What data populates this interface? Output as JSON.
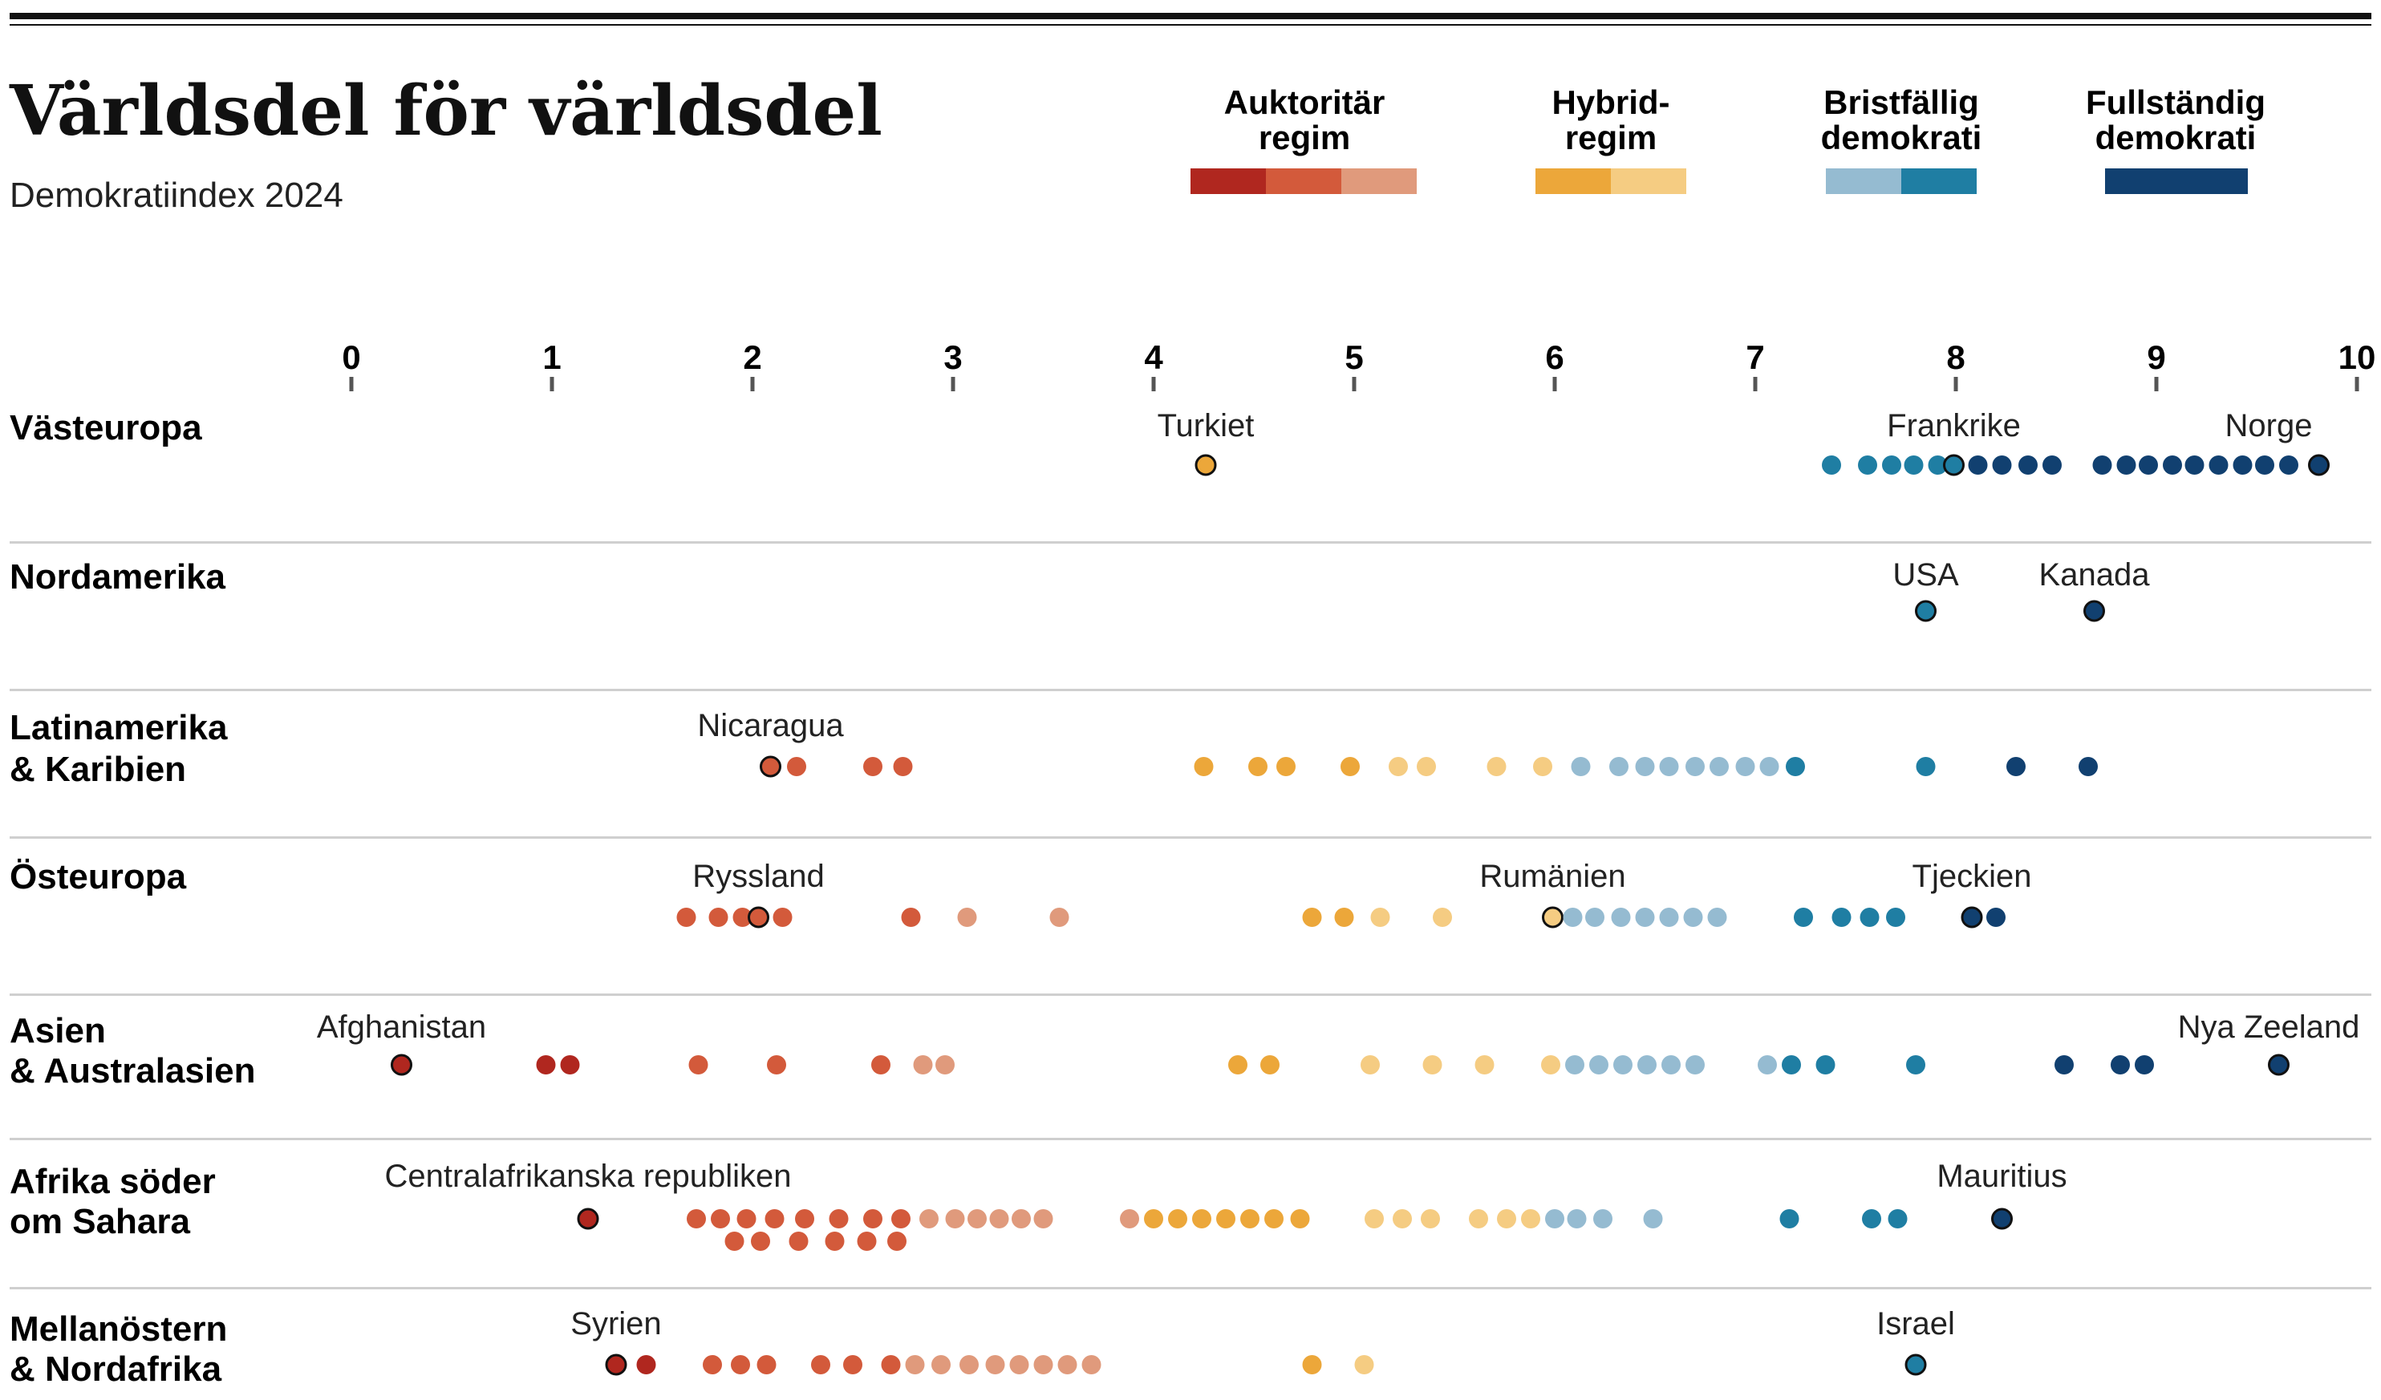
{
  "header": {
    "title": "Världsdel för världsdel",
    "subtitle": "Demokratiindex 2024"
  },
  "legend": [
    {
      "line1": "Auktoritär",
      "line2": "regim",
      "colors": [
        "#b0271f",
        "#d35a3b",
        "#e09a7c"
      ]
    },
    {
      "line1": "Hybrid-",
      "line2": "regim",
      "colors": [
        "#eca73a",
        "#f5cc82"
      ]
    },
    {
      "line1": "Bristfällig",
      "line2": "demokrati",
      "colors": [
        "#95bbd1",
        "#1f7ea3"
      ]
    },
    {
      "line1": "Fullständig",
      "line2": "demokrati",
      "colors": [
        "#114070"
      ]
    }
  ],
  "chart_data": {
    "type": "scatter",
    "xlim": [
      0,
      10
    ],
    "x_ticks": [
      "0",
      "1",
      "2",
      "3",
      "4",
      "5",
      "6",
      "7",
      "8",
      "9",
      "10"
    ],
    "categories": {
      "auth_dark": "#b0271f",
      "auth_mid": "#d35a3b",
      "auth_light": "#e09a7c",
      "hyb_dark": "#eca73a",
      "hyb_light": "#f5cc82",
      "flaw_light": "#95bbd1",
      "flaw_dark": "#1f7ea3",
      "full": "#114070"
    },
    "regions": [
      {
        "name_lines": [
          "Västeuropa"
        ],
        "labels": [
          {
            "text": "Turkiet",
            "value": 4.26
          },
          {
            "text": "Frankrike",
            "value": 7.99
          },
          {
            "text": "Norge",
            "value": 9.81
          }
        ],
        "values": [
          [
            4.26
          ],
          [
            7.38,
            7.56,
            7.68,
            7.79,
            7.91,
            7.99,
            8.11,
            8.23,
            8.36,
            8.48
          ],
          [
            8.73,
            8.85,
            8.96,
            9.08,
            9.19,
            9.31,
            9.43,
            9.54,
            9.66,
            9.81
          ]
        ]
      },
      {
        "name_lines": [
          "Nordamerika"
        ],
        "labels": [
          {
            "text": "USA",
            "value": 7.85
          },
          {
            "text": "Kanada",
            "value": 8.69
          }
        ],
        "values": [
          [],
          [
            7.85
          ],
          [
            8.69
          ]
        ]
      },
      {
        "name_lines": [
          "Latinamerika",
          "& Karibien"
        ],
        "labels": [
          {
            "text": "Nicaragua",
            "value": 2.09
          }
        ],
        "values": [
          [
            2.09,
            2.22,
            2.6,
            2.75
          ],
          [
            4.25,
            4.52,
            4.66,
            4.98,
            5.22,
            5.36,
            5.71,
            5.94
          ],
          [
            6.13,
            6.32,
            6.45,
            6.57,
            6.7,
            6.82,
            6.95,
            7.07,
            7.2,
            7.85,
            8.3,
            8.66
          ]
        ]
      },
      {
        "name_lines": [
          "Östeuropa"
        ],
        "labels": [
          {
            "text": "Ryssland",
            "value": 2.03
          },
          {
            "text": "Rumänien",
            "value": 5.99
          },
          {
            "text": "Tjeckien",
            "value": 8.08
          }
        ],
        "values": [
          [
            1.67,
            1.83,
            1.95,
            2.03,
            2.15,
            2.79,
            3.07,
            3.53
          ],
          [
            4.79,
            4.95,
            5.13,
            5.44,
            5.99
          ],
          [
            6.09,
            6.2,
            6.33,
            6.45,
            6.57,
            6.69,
            6.81,
            7.24,
            7.43,
            7.57,
            7.7,
            8.08,
            8.2
          ]
        ]
      },
      {
        "name_lines": [
          "Asien",
          "& Australasien"
        ],
        "labels": [
          {
            "text": "Afghanistan",
            "value": 0.25
          },
          {
            "text": "Nya Zeeland",
            "value": 9.61
          }
        ],
        "values": [
          [
            0.25,
            0.97,
            1.09,
            1.73,
            2.12,
            2.64,
            2.85,
            2.96
          ],
          [
            4.42,
            4.58,
            5.08,
            5.39,
            5.65
          ],
          [
            5.98,
            6.1,
            6.22,
            6.34,
            6.46,
            6.58,
            6.7,
            7.06,
            7.18,
            7.35,
            7.8,
            8.54,
            8.82,
            8.94,
            9.61
          ]
        ]
      },
      {
        "name_lines": [
          "Afrika söder",
          "om Sahara"
        ],
        "labels": [
          {
            "text": "Centralafrikanska republiken",
            "value": 1.18
          },
          {
            "text": "Mauritius",
            "value": 8.23
          }
        ],
        "values": [
          [
            1.18,
            1.72,
            1.84,
            1.97,
            2.11,
            2.26,
            2.43,
            2.6,
            2.74,
            2.88,
            3.01,
            3.12,
            3.23,
            3.34,
            3.45,
            1.91,
            2.04,
            2.23,
            2.41,
            2.57,
            2.72
          ],
          [
            3.88,
            4.0,
            4.12,
            4.24,
            4.36,
            4.48,
            4.6,
            4.73,
            5.1,
            5.24,
            5.38,
            5.62,
            5.76,
            5.88,
            6.0,
            6.11
          ],
          [
            6.24,
            6.49,
            7.17,
            7.58,
            7.71,
            8.23
          ]
        ]
      },
      {
        "name_lines": [
          "Mellanöstern",
          "& Nordafrika"
        ],
        "labels": [
          {
            "text": "Syrien",
            "value": 1.32
          },
          {
            "text": "Israel",
            "value": 7.8
          }
        ],
        "values": [
          [
            1.32,
            1.47,
            1.8,
            1.94,
            2.07,
            2.34,
            2.5,
            2.69,
            2.81,
            2.94,
            3.08,
            3.21,
            3.33,
            3.45,
            3.57,
            3.69
          ],
          [
            4.79,
            5.05
          ],
          [
            7.8
          ]
        ]
      }
    ]
  }
}
